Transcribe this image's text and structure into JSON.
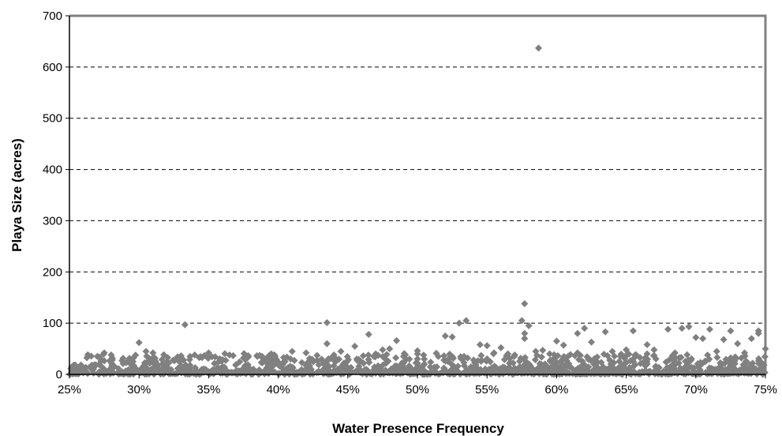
{
  "chart_data": {
    "type": "scatter",
    "title": "",
    "xlabel": "Water Presence Frequency",
    "ylabel": "Playa Size (acres)",
    "xlim": [
      0.25,
      0.75
    ],
    "ylim": [
      0,
      700
    ],
    "x_ticks": [
      "25%",
      "30%",
      "35%",
      "40%",
      "45%",
      "50%",
      "55%",
      "60%",
      "65%",
      "70%",
      "75%"
    ],
    "y_ticks": [
      "0",
      "100",
      "200",
      "300",
      "400",
      "500",
      "600",
      "700"
    ],
    "grid": "horizontal dashed",
    "legend": "none",
    "marker": "diamond",
    "marker_color": "#808080",
    "series": [
      {
        "points": [
          [
            0.587,
            637
          ],
          [
            0.577,
            138
          ],
          [
            0.575,
            105
          ],
          [
            0.58,
            95
          ],
          [
            0.577,
            80
          ],
          [
            0.577,
            70
          ],
          [
            0.333,
            97
          ],
          [
            0.435,
            101
          ],
          [
            0.535,
            105
          ],
          [
            0.53,
            100
          ],
          [
            0.52,
            75
          ],
          [
            0.525,
            73
          ],
          [
            0.695,
            93
          ],
          [
            0.62,
            90
          ],
          [
            0.68,
            88
          ],
          [
            0.71,
            88
          ],
          [
            0.69,
            90
          ],
          [
            0.745,
            85
          ],
          [
            0.745,
            80
          ],
          [
            0.725,
            85
          ],
          [
            0.655,
            85
          ],
          [
            0.635,
            83
          ],
          [
            0.615,
            80
          ],
          [
            0.465,
            78
          ],
          [
            0.3,
            62
          ],
          [
            0.485,
            66
          ],
          [
            0.435,
            60
          ],
          [
            0.455,
            55
          ],
          [
            0.48,
            50
          ],
          [
            0.475,
            48
          ],
          [
            0.545,
            58
          ],
          [
            0.55,
            56
          ],
          [
            0.56,
            52
          ],
          [
            0.6,
            65
          ],
          [
            0.605,
            57
          ],
          [
            0.625,
            63
          ],
          [
            0.59,
            47
          ],
          [
            0.65,
            48
          ],
          [
            0.665,
            58
          ],
          [
            0.7,
            72
          ],
          [
            0.705,
            70
          ],
          [
            0.72,
            68
          ],
          [
            0.74,
            70
          ],
          [
            0.73,
            60
          ],
          [
            0.75,
            50
          ],
          [
            0.5,
            46
          ],
          [
            0.5,
            40
          ],
          [
            0.5,
            30
          ],
          [
            0.5,
            22
          ],
          [
            0.5,
            15
          ],
          [
            0.5,
            8
          ],
          [
            0.665,
            40
          ],
          [
            0.665,
            30
          ],
          [
            0.665,
            20
          ],
          [
            0.305,
            45
          ],
          [
            0.31,
            42
          ],
          [
            0.275,
            42
          ],
          [
            0.28,
            38
          ],
          [
            0.35,
            42
          ],
          [
            0.365,
            38
          ],
          [
            0.385,
            35
          ],
          [
            0.41,
            45
          ],
          [
            0.42,
            42
          ],
          [
            0.375,
            32
          ],
          [
            0.395,
            40
          ],
          [
            0.27,
            35
          ],
          [
            0.34,
            38
          ],
          [
            0.44,
            38
          ],
          [
            0.445,
            45
          ],
          [
            0.47,
            40
          ],
          [
            0.49,
            35
          ],
          [
            0.515,
            35
          ],
          [
            0.555,
            42
          ],
          [
            0.565,
            40
          ],
          [
            0.585,
            45
          ],
          [
            0.595,
            40
          ],
          [
            0.615,
            42
          ],
          [
            0.64,
            45
          ],
          [
            0.67,
            48
          ],
          [
            0.685,
            42
          ],
          [
            0.715,
            45
          ],
          [
            0.735,
            42
          ]
        ]
      }
    ]
  }
}
